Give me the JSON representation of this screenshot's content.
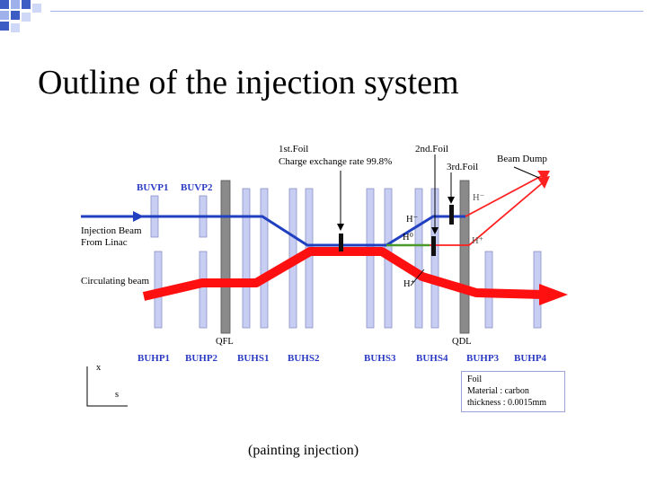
{
  "title": "Outline of the injection system",
  "caption": "(painting injection)",
  "magnets_top": [
    "BUVP1",
    "BUVP2"
  ],
  "magnets_bottom": [
    "BUHP1",
    "BUHP2",
    "BUHS1",
    "BUHS2",
    "BUHS3",
    "BUHS4",
    "BUHP3",
    "BUHP4"
  ],
  "quads": [
    "QFL",
    "QDL"
  ],
  "labels": {
    "injection_beam": "Injection Beam",
    "from_linac": "From Linac",
    "circulating_beam": "Circulating beam",
    "foil1_name": "1st.Foil",
    "foil1_rate": "Charge exchange rate 99.8%",
    "foil2_name": "2nd.Foil",
    "foil3_name": "3rd.Foil",
    "beam_dump": "Beam Dump"
  },
  "particles": {
    "h_minus_top": "H⁻",
    "h_minus": "H⁻",
    "h_zero": "H⁰",
    "h_plus_right": "H⁺",
    "h_plus": "H⁺"
  },
  "axes": {
    "x": "x",
    "s": "s"
  },
  "foil_info": {
    "heading": "Foil",
    "material": "Material : carbon",
    "thickness": "thickness : 0.0015mm"
  },
  "colors": {
    "injection": "#2040c0",
    "circulating": "#ff1010",
    "h0": "#4a9a2a",
    "magnet_fill": "#c8cdf2",
    "quad_fill": "#8a8a8a",
    "magnet_label": "#2b3cc4"
  }
}
